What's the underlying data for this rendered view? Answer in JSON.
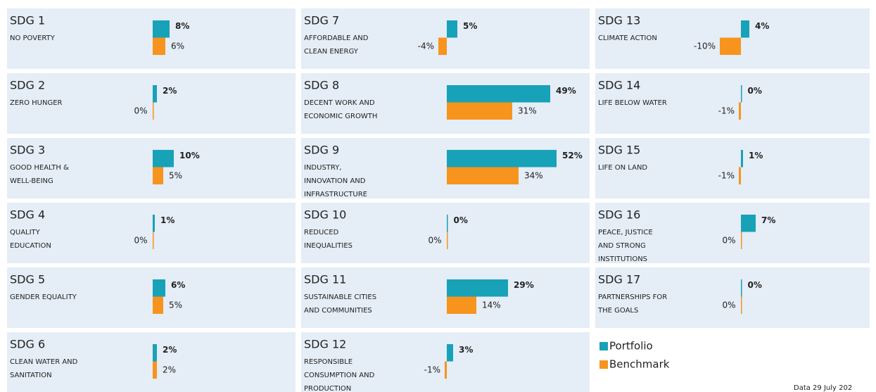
{
  "legend": [
    {
      "name": "Portfolio",
      "color": "#17a2b8"
    },
    {
      "name": "Benchmark",
      "color": "#f7941d"
    }
  ],
  "footer": "Data 29 July 202",
  "chart_data": [
    {
      "type": "bar",
      "title": "SDG 1",
      "subtitle": [
        "NO POVERTY"
      ],
      "values": [
        8,
        6
      ],
      "value_labels": [
        "8%",
        "6%"
      ]
    },
    {
      "type": "bar",
      "title": "SDG 2",
      "subtitle": [
        "ZERO HUNGER"
      ],
      "values": [
        2,
        0
      ],
      "value_labels": [
        "2%",
        "0%"
      ]
    },
    {
      "type": "bar",
      "title": "SDG 3",
      "subtitle": [
        "GOOD HEALTH &",
        "WELL-BEING"
      ],
      "values": [
        10,
        5
      ],
      "value_labels": [
        "10%",
        "5%"
      ]
    },
    {
      "type": "bar",
      "title": "SDG 4",
      "subtitle": [
        "QUALITY",
        "EDUCATION"
      ],
      "values": [
        1,
        0
      ],
      "value_labels": [
        "1%",
        "0%"
      ]
    },
    {
      "type": "bar",
      "title": "SDG 5",
      "subtitle": [
        "GENDER EQUALITY"
      ],
      "values": [
        6,
        5
      ],
      "value_labels": [
        "6%",
        "5%"
      ]
    },
    {
      "type": "bar",
      "title": "SDG 6",
      "subtitle": [
        "CLEAN WATER AND",
        "SANITATION"
      ],
      "values": [
        2,
        2
      ],
      "value_labels": [
        "2%",
        "2%"
      ]
    },
    {
      "type": "bar",
      "title": "SDG 7",
      "subtitle": [
        "AFFORDABLE AND",
        "CLEAN ENERGY"
      ],
      "values": [
        5,
        -4
      ],
      "value_labels": [
        "5%",
        "-4%"
      ]
    },
    {
      "type": "bar",
      "title": "SDG 8",
      "subtitle": [
        "DECENT WORK AND",
        "ECONOMIC GROWTH"
      ],
      "values": [
        49,
        31
      ],
      "value_labels": [
        "49%",
        "31%"
      ]
    },
    {
      "type": "bar",
      "title": "SDG 9",
      "subtitle": [
        "INDUSTRY,",
        "INNOVATION AND",
        "INFRASTRUCTURE"
      ],
      "values": [
        52,
        34
      ],
      "value_labels": [
        "52%",
        "34%"
      ]
    },
    {
      "type": "bar",
      "title": "SDG 10",
      "subtitle": [
        "REDUCED",
        "INEQUALITIES"
      ],
      "values": [
        0,
        0
      ],
      "value_labels": [
        "0%",
        "0%"
      ]
    },
    {
      "type": "bar",
      "title": "SDG 11",
      "subtitle": [
        "SUSTAINABLE CITIES",
        "AND COMMUNITIES"
      ],
      "values": [
        29,
        14
      ],
      "value_labels": [
        "29%",
        "14%"
      ]
    },
    {
      "type": "bar",
      "title": "SDG 12",
      "subtitle": [
        "RESPONSIBLE",
        "CONSUMPTION AND",
        "PRODUCTION"
      ],
      "values": [
        3,
        -1
      ],
      "value_labels": [
        "3%",
        "-1%"
      ]
    },
    {
      "type": "bar",
      "title": "SDG 13",
      "subtitle": [
        "CLIMATE ACTION"
      ],
      "values": [
        4,
        -10
      ],
      "value_labels": [
        "4%",
        "-10%"
      ]
    },
    {
      "type": "bar",
      "title": "SDG 14",
      "subtitle": [
        "LIFE BELOW WATER"
      ],
      "values": [
        0,
        -1
      ],
      "value_labels": [
        "0%",
        "-1%"
      ]
    },
    {
      "type": "bar",
      "title": "SDG 15",
      "subtitle": [
        "LIFE ON LAND"
      ],
      "values": [
        1,
        -1
      ],
      "value_labels": [
        "1%",
        "-1%"
      ]
    },
    {
      "type": "bar",
      "title": "SDG 16",
      "subtitle": [
        "PEACE, JUSTICE",
        "AND STRONG",
        "INSTITUTIONS"
      ],
      "values": [
        7,
        0
      ],
      "value_labels": [
        "7%",
        "0%"
      ]
    },
    {
      "type": "bar",
      "title": "SDG 17",
      "subtitle": [
        "PARTNERSHIPS FOR",
        "THE GOALS"
      ],
      "values": [
        0,
        0
      ],
      "value_labels": [
        "0%",
        "0%"
      ]
    }
  ]
}
